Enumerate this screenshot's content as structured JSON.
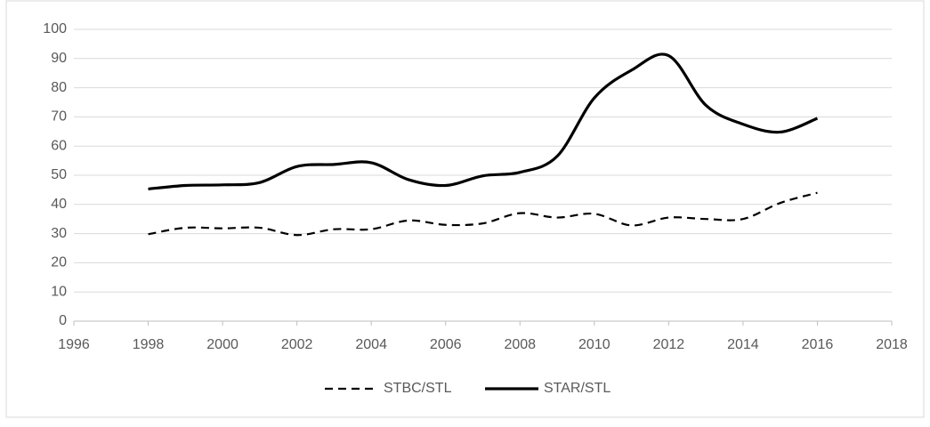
{
  "chart_data": {
    "type": "line",
    "x": [
      1998,
      1999,
      2000,
      2001,
      2002,
      2003,
      2004,
      2005,
      2006,
      2007,
      2008,
      2009,
      2010,
      2011,
      2012,
      2013,
      2014,
      2015,
      2016
    ],
    "series": [
      {
        "name": "STBC/STL",
        "color": "#000000",
        "dash": true,
        "values": [
          29.8,
          32,
          31.8,
          32,
          29.5,
          31.5,
          31.5,
          34.5,
          33,
          33.5,
          37,
          35.5,
          36.8,
          32.8,
          35.5,
          35,
          35,
          40.5,
          44
        ]
      },
      {
        "name": "STAR/STL",
        "color": "#000000",
        "dash": false,
        "values": [
          45.3,
          46.5,
          46.7,
          47.5,
          53,
          53.7,
          54.3,
          48.5,
          46.5,
          49.8,
          51,
          56.5,
          76.5,
          86,
          91,
          74,
          67.5,
          64.8,
          69.5
        ]
      }
    ],
    "xlim": [
      1996,
      2018
    ],
    "xticks": [
      1996,
      1998,
      2000,
      2002,
      2004,
      2006,
      2008,
      2010,
      2012,
      2014,
      2016,
      2018
    ],
    "ylim": [
      0,
      100
    ],
    "yticks": [
      0,
      10,
      20,
      30,
      40,
      50,
      60,
      70,
      80,
      90,
      100
    ],
    "grid": true,
    "legend": "bottom"
  }
}
